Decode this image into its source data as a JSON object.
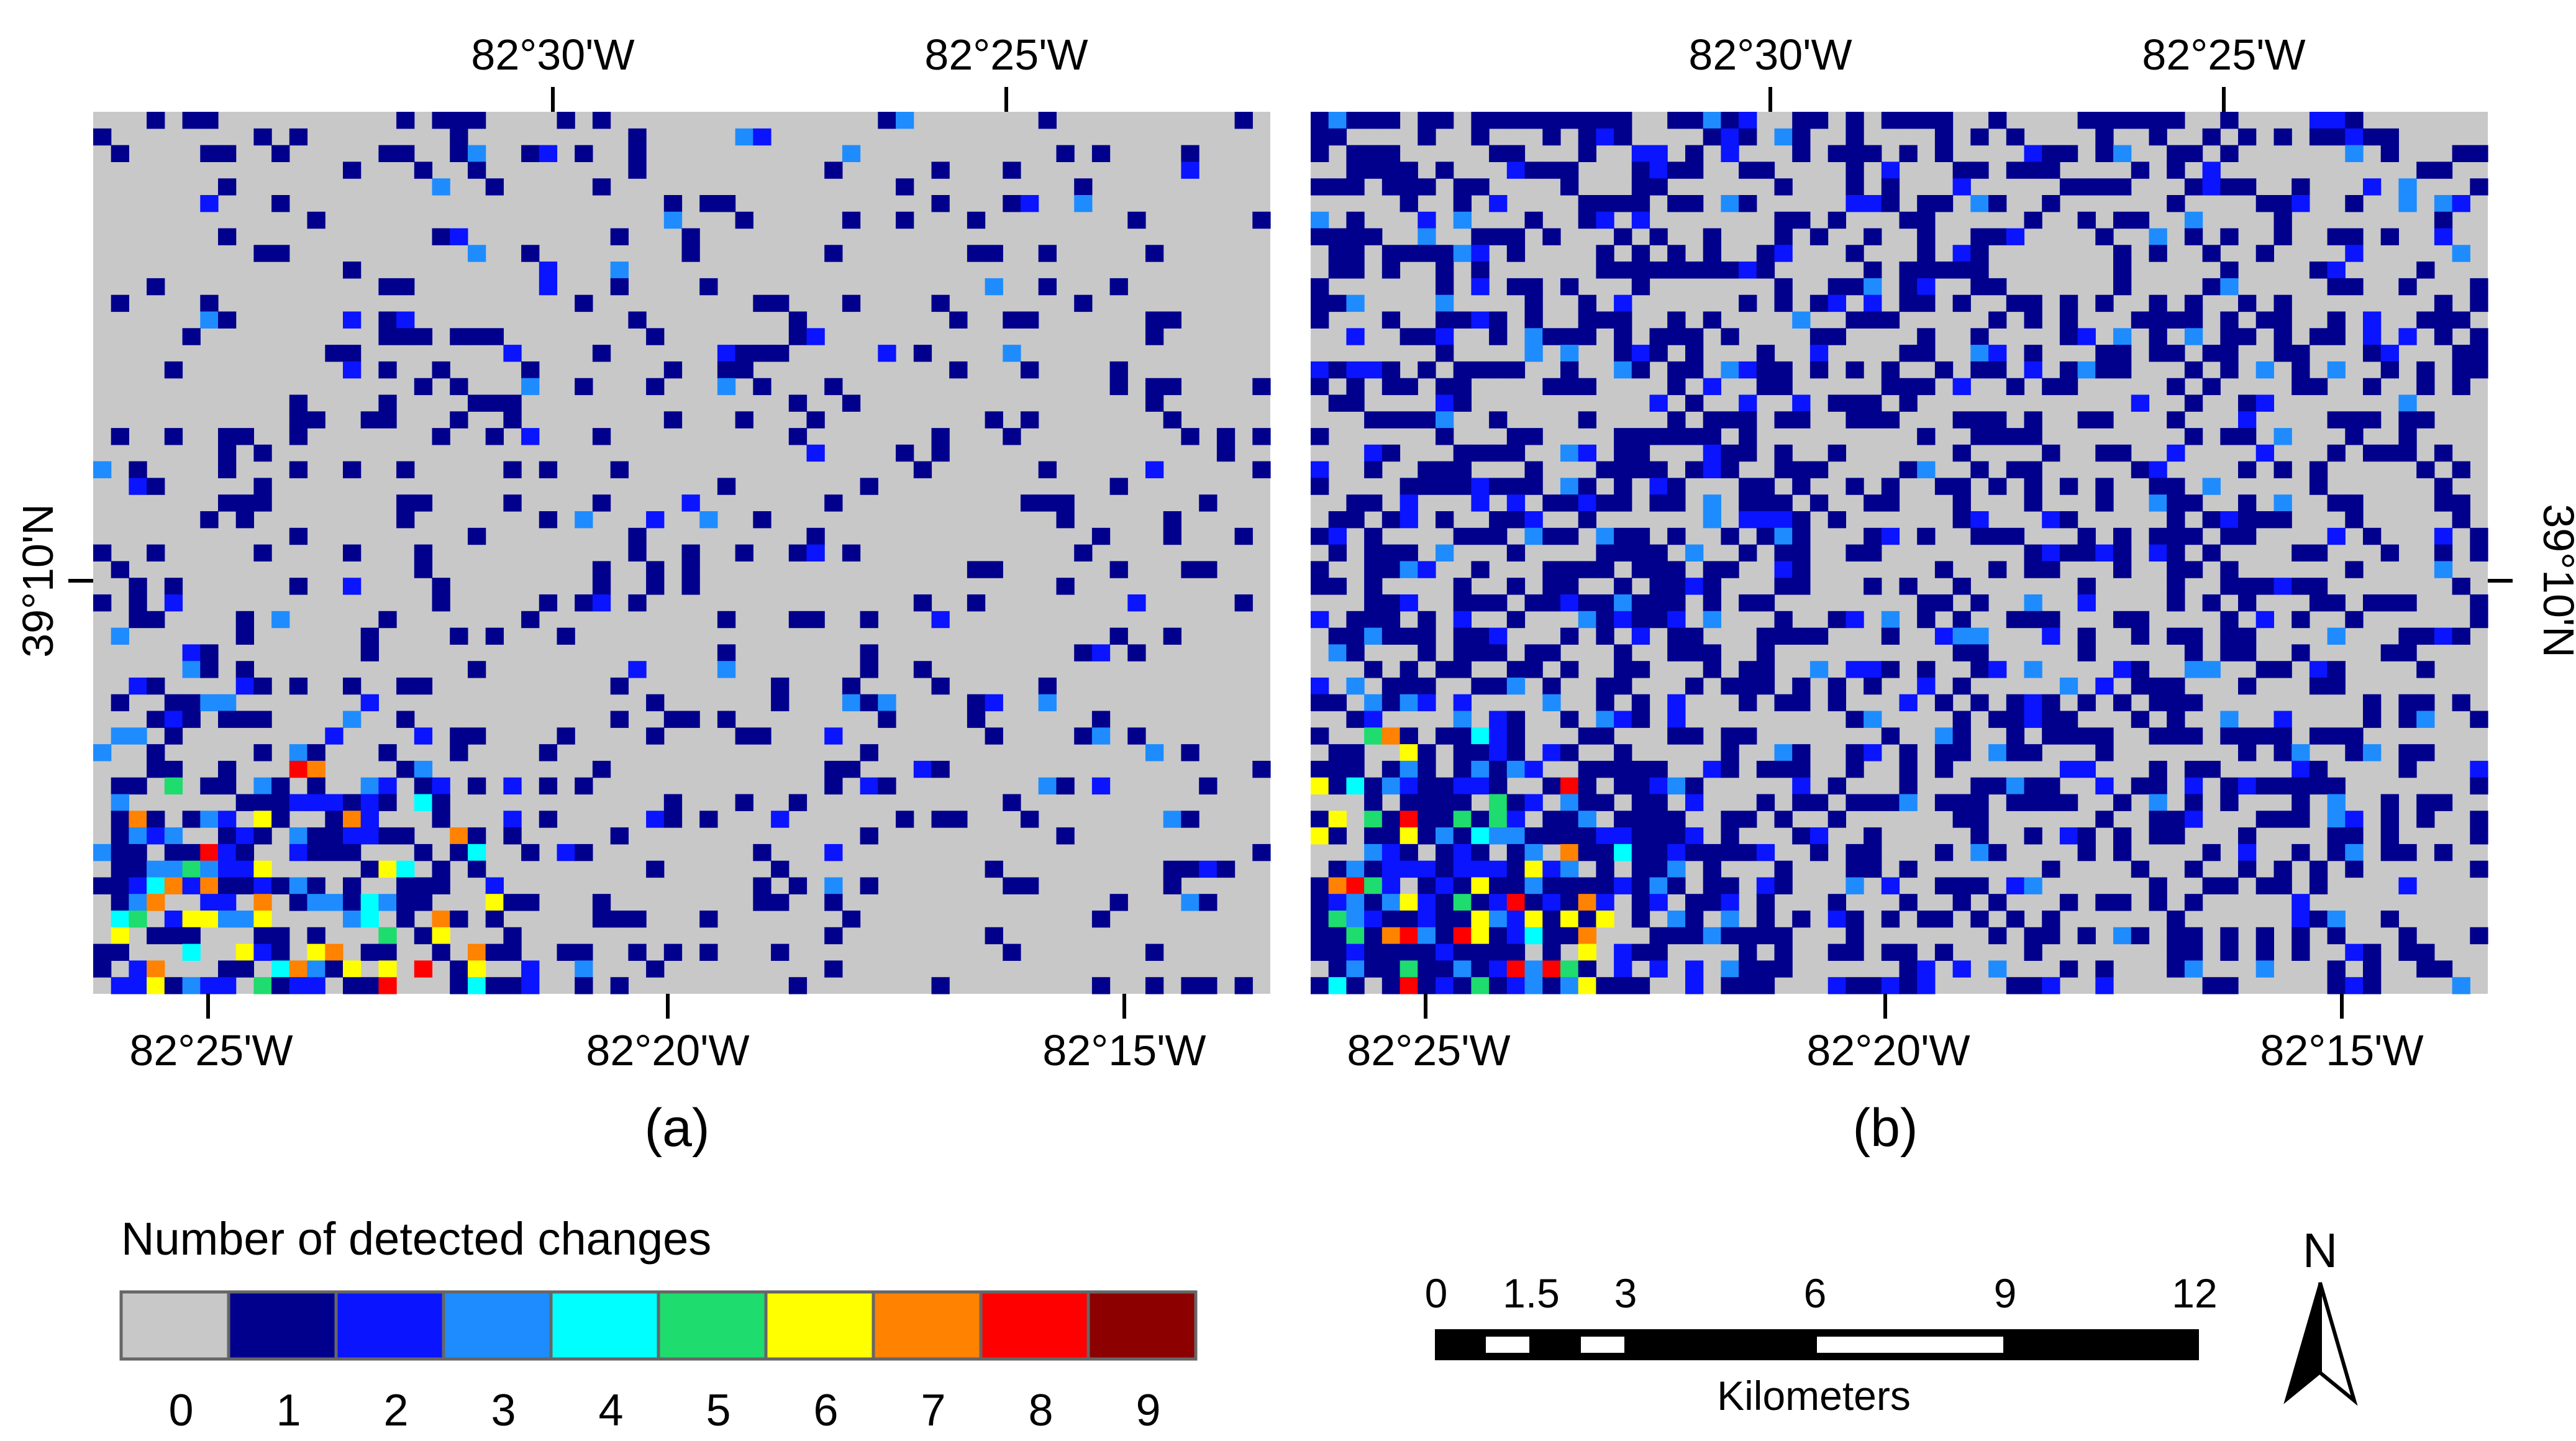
{
  "panels": [
    {
      "id": "a",
      "caption": "(a)",
      "top_labels": [
        "82°30'W",
        "82°25'W"
      ],
      "bottom_labels": [
        "82°25'W",
        "82°20'W",
        "82°15'W"
      ],
      "side_label": "39°10'N",
      "density": 0.16,
      "seed": 11
    },
    {
      "id": "b",
      "caption": "(b)",
      "top_labels": [
        "82°30'W",
        "82°25'W"
      ],
      "bottom_labels": [
        "82°25'W",
        "82°20'W",
        "82°15'W"
      ],
      "side_label": "39°10'N",
      "density": 0.44,
      "seed": 37
    }
  ],
  "legend": {
    "title": "Number of detected changes",
    "classes": [
      {
        "value": "0",
        "color": "#c8c8c8"
      },
      {
        "value": "1",
        "color": "#00008c"
      },
      {
        "value": "2",
        "color": "#0a14ff"
      },
      {
        "value": "3",
        "color": "#1e8cff"
      },
      {
        "value": "4",
        "color": "#00ffff"
      },
      {
        "value": "5",
        "color": "#1edc6e"
      },
      {
        "value": "6",
        "color": "#ffff00"
      },
      {
        "value": "7",
        "color": "#ff8200"
      },
      {
        "value": "8",
        "color": "#ff0000"
      },
      {
        "value": "9",
        "color": "#8c0000"
      }
    ]
  },
  "scale_bar": {
    "tick_labels": [
      "0",
      "1.5",
      "3",
      "6",
      "9",
      "12"
    ],
    "unit": "Kilometers"
  },
  "north_arrow": {
    "label": "N"
  }
}
